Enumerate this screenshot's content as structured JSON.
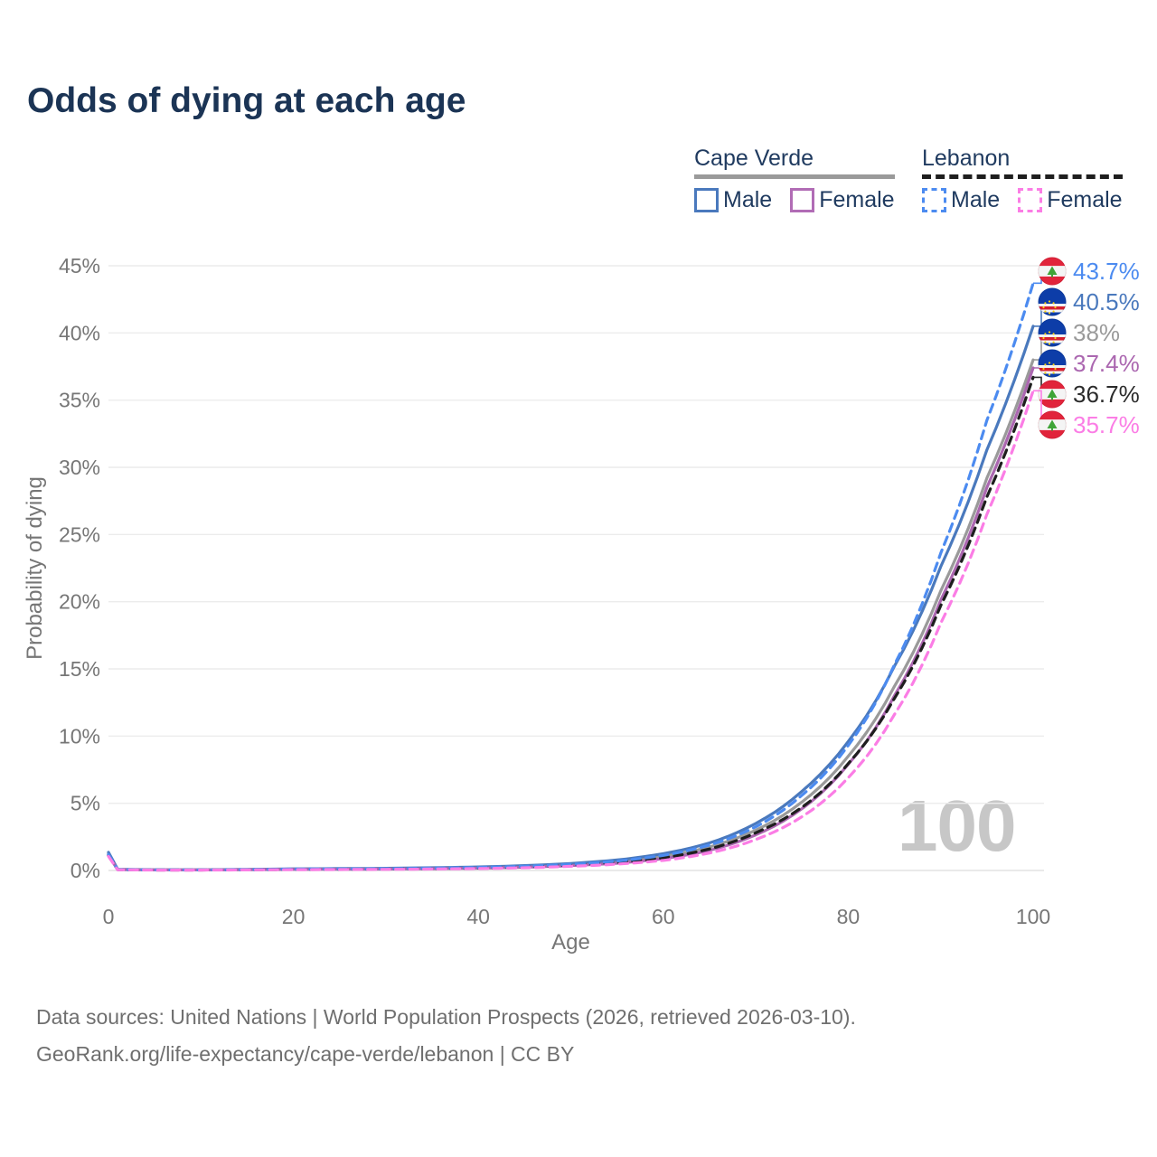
{
  "title": "Odds of dying at each age",
  "watermark": "100",
  "legend": {
    "groups": [
      {
        "label": "Cape Verde",
        "line_style": "solid",
        "line_color": "#9a9a9a",
        "items": [
          {
            "label": "Male",
            "color": "#4a79bd",
            "dash": false
          },
          {
            "label": "Female",
            "color": "#b16cb5",
            "dash": false
          }
        ]
      },
      {
        "label": "Lebanon",
        "line_style": "dashed",
        "line_color": "#1e1e1e",
        "items": [
          {
            "label": "Male",
            "color": "#4c8bf0",
            "dash": true
          },
          {
            "label": "Female",
            "color": "#fb7de5",
            "dash": true
          }
        ]
      }
    ]
  },
  "chart_data": {
    "type": "line",
    "title": "Odds of dying at each age",
    "xlabel": "Age",
    "ylabel": "Probability of dying",
    "xlim": [
      0,
      100
    ],
    "ylim": [
      0,
      45
    ],
    "x_ticks": [
      0,
      20,
      40,
      60,
      80,
      100
    ],
    "y_ticks_pct": [
      0,
      5,
      10,
      15,
      20,
      25,
      30,
      35,
      40,
      45
    ],
    "grid": "horizontal",
    "legend_position": "top-right",
    "axis_color": "#767676",
    "grid_color": "#ececec",
    "x": [
      0,
      1,
      5,
      10,
      20,
      30,
      40,
      45,
      50,
      55,
      60,
      65,
      70,
      75,
      80,
      85,
      90,
      95,
      100
    ],
    "series": [
      {
        "name": "Cape Verde combined",
        "color": "#9a9a9a",
        "dash": false,
        "flag": "cape-verde",
        "values": [
          1.25,
          0.08,
          0.045,
          0.045,
          0.1,
          0.13,
          0.21,
          0.3,
          0.44,
          0.65,
          1.05,
          1.75,
          3.0,
          5.1,
          8.5,
          13.7,
          20.8,
          29.2,
          38.0
        ]
      },
      {
        "name": "Cape Verde Male",
        "color": "#4a79bd",
        "dash": false,
        "flag": "cape-verde",
        "values": [
          1.35,
          0.09,
          0.05,
          0.05,
          0.12,
          0.16,
          0.26,
          0.36,
          0.52,
          0.78,
          1.25,
          2.05,
          3.5,
          5.9,
          9.6,
          15.2,
          22.6,
          31.3,
          40.5
        ]
      },
      {
        "name": "Cape Verde Female",
        "color": "#ab67b0",
        "dash": false,
        "flag": "cape-verde",
        "values": [
          1.1,
          0.07,
          0.04,
          0.04,
          0.08,
          0.1,
          0.17,
          0.24,
          0.36,
          0.54,
          0.88,
          1.5,
          2.65,
          4.6,
          7.9,
          13.0,
          20.1,
          28.5,
          37.4
        ]
      },
      {
        "name": "Lebanon combined",
        "color": "#1e1e1e",
        "dash": true,
        "flag": "lebanon",
        "values": [
          1.15,
          0.06,
          0.035,
          0.035,
          0.08,
          0.11,
          0.18,
          0.26,
          0.4,
          0.6,
          0.95,
          1.6,
          2.8,
          4.7,
          7.95,
          12.8,
          19.7,
          27.8,
          36.7
        ]
      },
      {
        "name": "Lebanon Male",
        "color": "#4c8bf0",
        "dash": true,
        "flag": "lebanon",
        "values": [
          1.2,
          0.07,
          0.04,
          0.04,
          0.1,
          0.13,
          0.22,
          0.31,
          0.46,
          0.7,
          1.12,
          1.9,
          3.25,
          5.6,
          9.3,
          15.3,
          23.6,
          33.5,
          43.7
        ]
      },
      {
        "name": "Lebanon Female",
        "color": "#fb7de5",
        "dash": true,
        "flag": "lebanon",
        "values": [
          1.05,
          0.05,
          0.03,
          0.03,
          0.06,
          0.08,
          0.14,
          0.2,
          0.31,
          0.47,
          0.75,
          1.3,
          2.3,
          4.0,
          6.9,
          11.6,
          18.4,
          26.5,
          35.7
        ]
      }
    ],
    "end_labels": [
      {
        "text": "43.7%",
        "value": 43.7,
        "color": "#4c8bf0",
        "flag": "lebanon"
      },
      {
        "text": "40.5%",
        "value": 40.5,
        "color": "#4a79bd",
        "flag": "cape-verde"
      },
      {
        "text": "38%",
        "value": 38.0,
        "color": "#9a9a9a",
        "flag": "cape-verde"
      },
      {
        "text": "37.4%",
        "value": 37.4,
        "color": "#ab67b0",
        "flag": "cape-verde"
      },
      {
        "text": "36.7%",
        "value": 36.7,
        "color": "#2b2b2b",
        "flag": "lebanon"
      },
      {
        "text": "35.7%",
        "value": 35.7,
        "color": "#fb7de5",
        "flag": "lebanon"
      }
    ]
  },
  "footer": {
    "line1": "Data sources: United Nations | World Population Prospects (2026, retrieved 2026-03-10).",
    "line2": "GeoRank.org/life-expectancy/cape-verde/lebanon | CC BY"
  }
}
